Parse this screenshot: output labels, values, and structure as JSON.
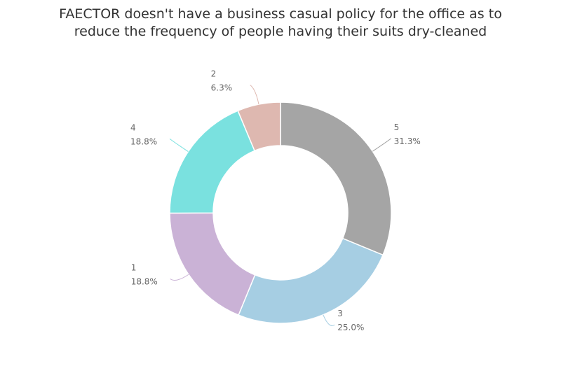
{
  "title": {
    "line1": "FAECTOR doesn't have a business casual policy for the office as to",
    "line2": "reduce the frequency of people having their suits dry-cleaned"
  },
  "chart_data": {
    "type": "pie",
    "donut": true,
    "title": "FAECTOR doesn't have a business casual policy for the office as to reduce the frequency of people having their suits dry-cleaned",
    "categories": [
      "5",
      "3",
      "1",
      "4",
      "2"
    ],
    "values": [
      31.3,
      25.0,
      18.8,
      18.8,
      6.3
    ],
    "value_labels": [
      "31.3%",
      "25.0%",
      "18.8%",
      "18.8%",
      "6.3%"
    ],
    "colors": [
      "#a5a5a5",
      "#a6cee3",
      "#cab2d6",
      "#7ae1df",
      "#deb8b0"
    ]
  }
}
